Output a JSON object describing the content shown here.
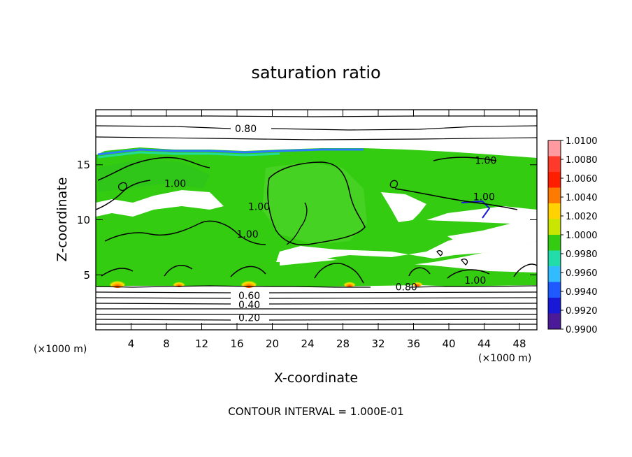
{
  "chart_data": {
    "type": "heatmap",
    "title": "saturation ratio",
    "xlabel": "X-coordinate",
    "ylabel": "Z-coordinate",
    "x_unit_label_left": "(×1000 m)",
    "x_unit_label_right": "(×1000 m)",
    "footer": "CONTOUR INTERVAL = 1.000E-01",
    "xlim": [
      0,
      50
    ],
    "ylim": [
      0,
      20
    ],
    "x_ticks": [
      4,
      8,
      12,
      16,
      20,
      24,
      28,
      32,
      36,
      40,
      44,
      48
    ],
    "x_tick_labels": [
      "4",
      "8",
      "12",
      "16",
      "20",
      "24",
      "28",
      "32",
      "36",
      "40",
      "44",
      "48"
    ],
    "y_ticks": [
      5,
      10,
      15
    ],
    "y_tick_labels": [
      "5",
      "10",
      "15"
    ],
    "colorbar": {
      "min": 0.99,
      "max": 1.01,
      "labels": [
        "1.0100",
        "1.0080",
        "1.0060",
        "1.0040",
        "1.0020",
        "1.0000",
        "0.9980",
        "0.9960",
        "0.9940",
        "0.9920",
        "0.9900"
      ],
      "colors": [
        "#ff9aa0",
        "#ff3a2a",
        "#ff1e00",
        "#ff7a00",
        "#ffd200",
        "#c8e600",
        "#33cc11",
        "#22ddaa",
        "#33bbff",
        "#1e5aff",
        "#1818d6",
        "#4a1a99"
      ]
    },
    "contour_labels": [
      {
        "text": "0.80",
        "x": 35.2,
        "z": 3.9
      },
      {
        "text": "0.80",
        "x": 17.0,
        "z": 18.3
      },
      {
        "text": "0.60",
        "x": 17.4,
        "z": 3.1
      },
      {
        "text": "0.40",
        "x": 17.4,
        "z": 2.3
      },
      {
        "text": "0.20",
        "x": 17.4,
        "z": 1.1
      },
      {
        "text": "1.00",
        "x": 44.2,
        "z": 15.4
      },
      {
        "text": "1.00",
        "x": 44.0,
        "z": 12.1
      },
      {
        "text": "1.00",
        "x": 43.0,
        "z": 4.5
      },
      {
        "text": "1.00",
        "x": 18.5,
        "z": 11.2
      },
      {
        "text": "1.00",
        "x": 17.2,
        "z": 8.7
      },
      {
        "text": "1.00",
        "x": 9.0,
        "z": 13.3
      }
    ]
  }
}
